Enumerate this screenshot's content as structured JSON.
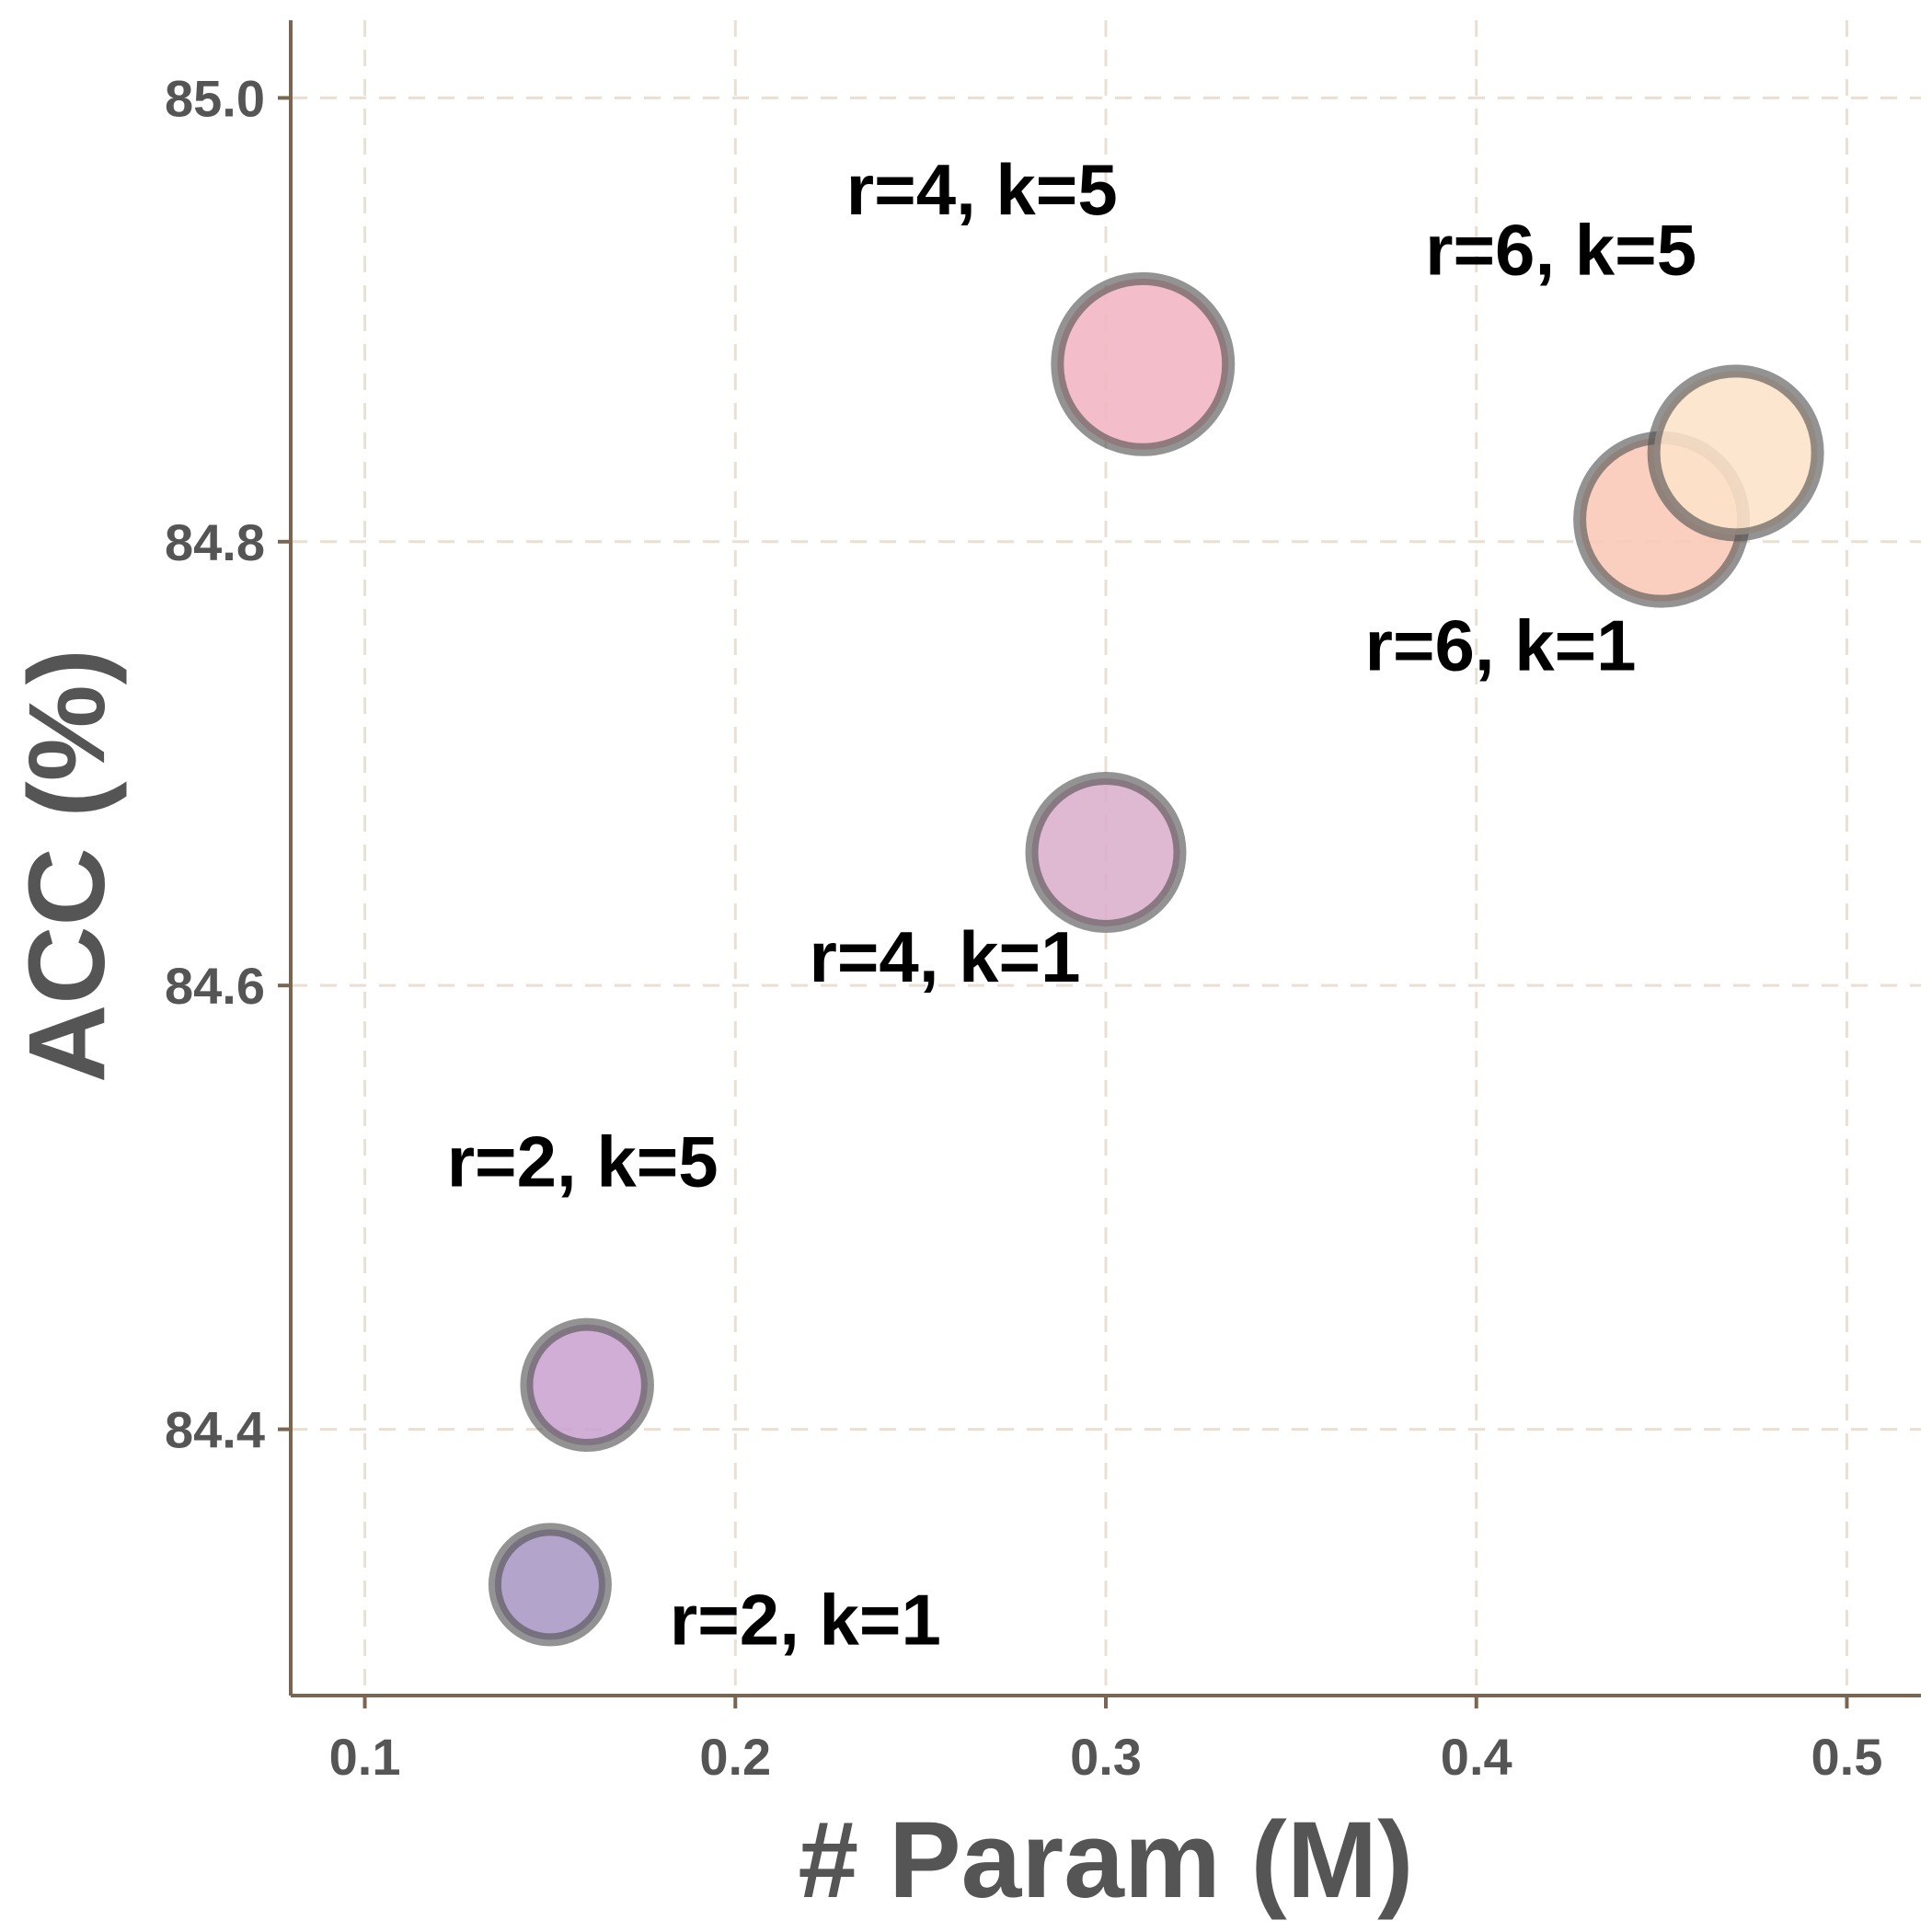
{
  "chart_data": {
    "type": "scatter",
    "title": "",
    "xlabel": "# Param (M)",
    "ylabel": "ACC (%)",
    "xlim": [
      0.08,
      0.52
    ],
    "ylim": [
      84.28,
      85.035
    ],
    "xticks": [
      0.1,
      0.2,
      0.3,
      0.4,
      0.5
    ],
    "xtick_labels": [
      "0.1",
      "0.2",
      "0.3",
      "0.4",
      "0.5"
    ],
    "yticks": [
      84.4,
      84.6,
      84.8,
      85.0
    ],
    "ytick_labels": [
      "84.4",
      "84.6",
      "84.8",
      "85.0"
    ],
    "grid": true,
    "legend": "none",
    "points": [
      {
        "label": "r=2, k=1",
        "x": 0.15,
        "y": 84.33,
        "size": 1.0,
        "color": "#a997c4",
        "label_pos": "right-below"
      },
      {
        "label": "r=2, k=5",
        "x": 0.16,
        "y": 84.42,
        "size": 1.2,
        "color": "#c9a3cf",
        "label_pos": "above"
      },
      {
        "label": "r=4, k=1",
        "x": 0.3,
        "y": 84.66,
        "size": 1.8,
        "color": "#dbaecc",
        "label_pos": "below-left"
      },
      {
        "label": "r=4, k=5",
        "x": 0.31,
        "y": 84.88,
        "size": 2.4,
        "color": "#f1b5c2",
        "label_pos": "above-left"
      },
      {
        "label": "r=6, k=1",
        "x": 0.45,
        "y": 84.81,
        "size": 2.2,
        "color": "#f9c8b6",
        "label_pos": "below-left"
      },
      {
        "label": "r=6, k=5",
        "x": 0.47,
        "y": 84.84,
        "size": 2.2,
        "color": "#fde3c9",
        "label_pos": "above-left"
      }
    ]
  }
}
